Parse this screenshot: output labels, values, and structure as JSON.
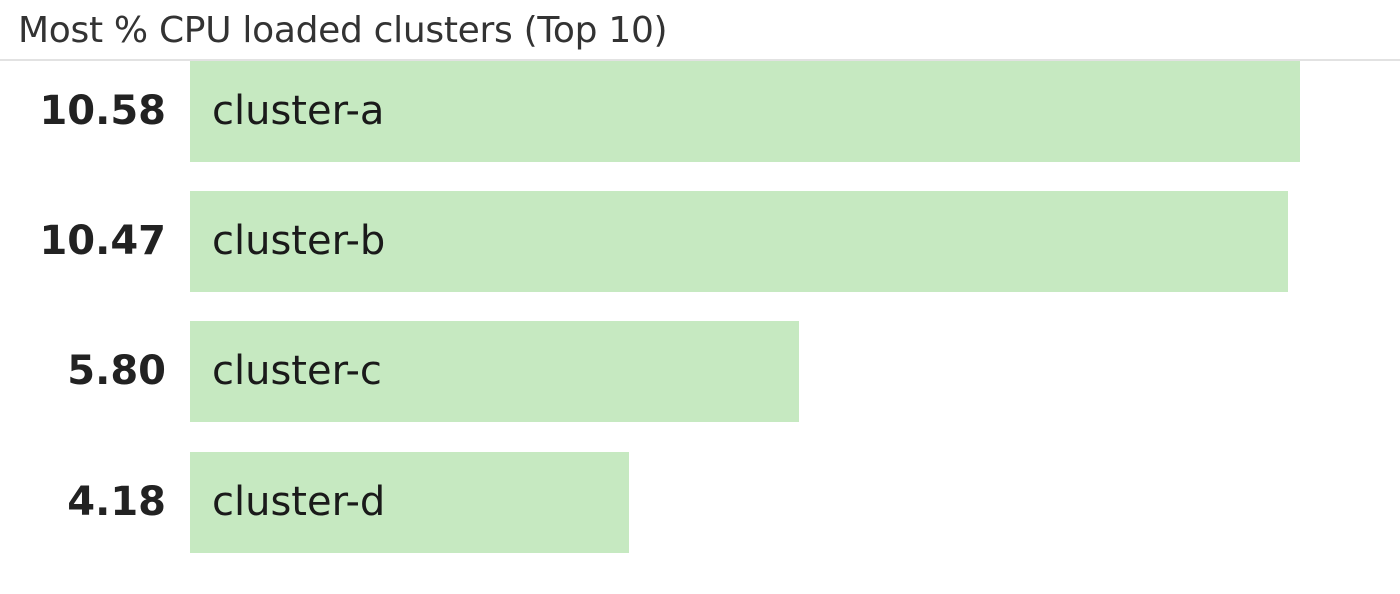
{
  "title": "Most % CPU loaded clusters (Top 10)",
  "colors": {
    "bar": "#c6e9c1",
    "value_text": "#222222"
  },
  "chart_data": {
    "type": "bar",
    "orientation": "horizontal",
    "title": "Most % CPU loaded clusters (Top 10)",
    "categories": [
      "cluster-a",
      "cluster-b",
      "cluster-c",
      "cluster-d"
    ],
    "values": [
      10.58,
      10.47,
      5.8,
      4.18
    ],
    "value_labels": [
      "10.58",
      "10.47",
      "5.80",
      "4.18"
    ],
    "xlim": [
      0,
      10.58
    ],
    "grid": false,
    "legend": "none"
  }
}
